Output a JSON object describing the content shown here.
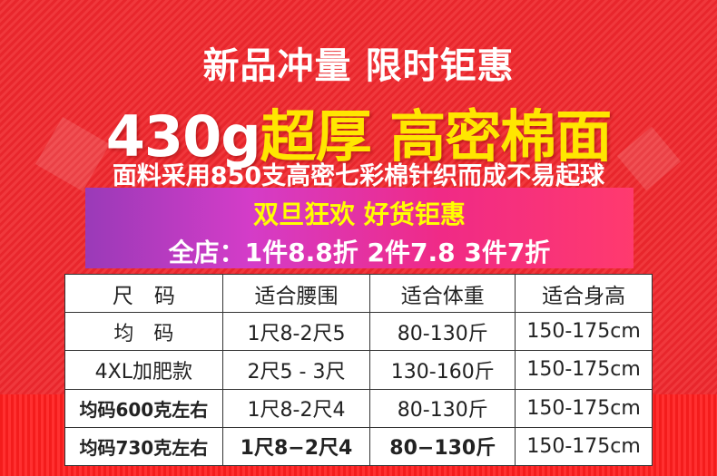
{
  "headline": "新品冲量 限时钜惠",
  "feature": {
    "weight": "430g",
    "text": "超厚 高密棉面"
  },
  "subtitle": "面料采用850支高密七彩棉针织而成不易起球",
  "promo": {
    "title": "双旦狂欢 好货钜惠",
    "discount": "全店：1件8.8折 2件7.8 3件7折"
  },
  "size_table": {
    "headers": [
      "尺　码",
      "适合腰围",
      "适合体重",
      "适合身高"
    ],
    "rows": [
      [
        "均　码",
        "1尺8-2尺5",
        "80-130斤",
        "150-175cm"
      ],
      [
        "4XL加肥款",
        "2尺5 - 3尺",
        "130-160斤",
        "150-175cm"
      ],
      [
        "均码600克左右",
        "1尺8-2尺4",
        "80-130斤",
        "150-175cm"
      ],
      [
        "均码730克左右",
        "1尺8−2尺4",
        "80−130斤",
        "150-175cm"
      ]
    ]
  },
  "colors": {
    "background": "#e8262c",
    "accent_yellow": "#ffe600",
    "banner_start": "#9a3ab8",
    "banner_end": "#ff3a6e"
  }
}
